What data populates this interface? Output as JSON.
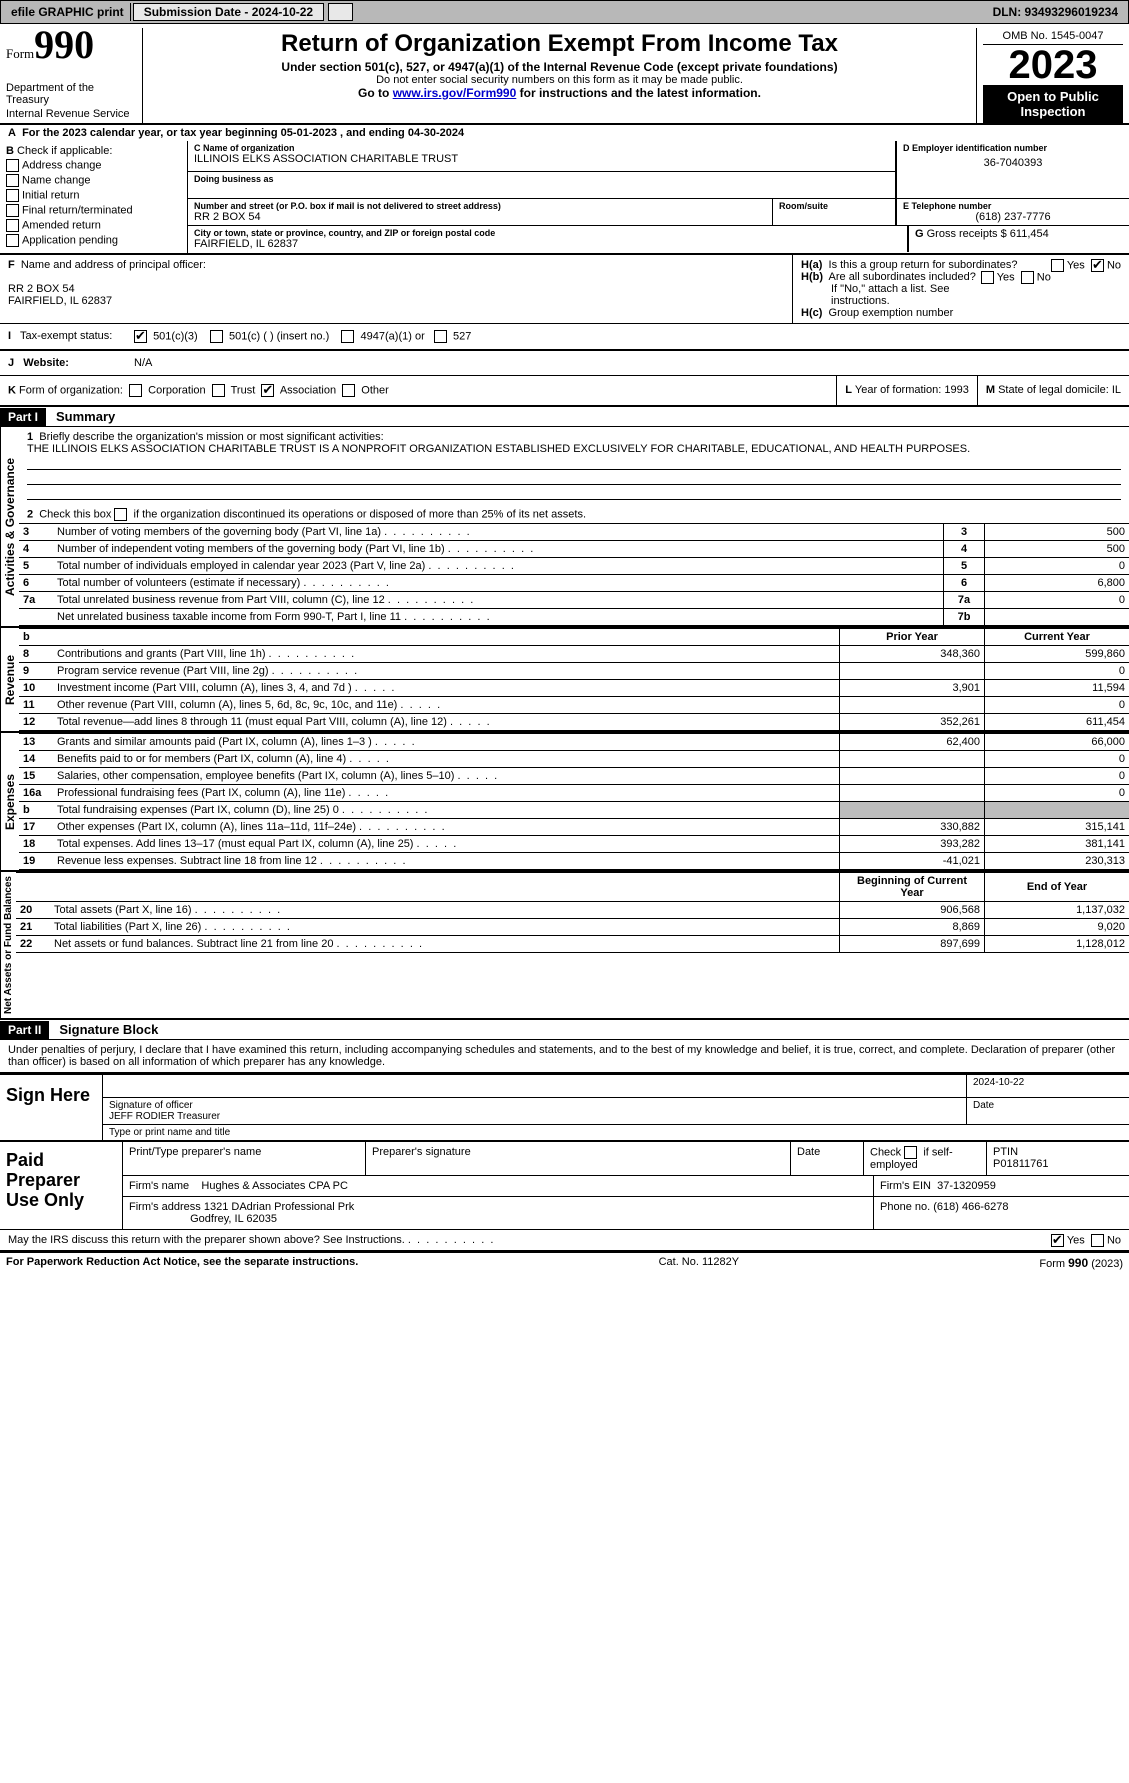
{
  "topbar": {
    "efile": "efile GRAPHIC print",
    "submission_label": "Submission Date - 2024-10-22",
    "dln_label": "DLN: 93493296019234"
  },
  "header": {
    "form_word": "Form",
    "form_number": "990",
    "dept": "Department of the Treasury",
    "irs": "Internal Revenue Service",
    "title": "Return of Organization Exempt From Income Tax",
    "subtitle": "Under section 501(c), 527, or 4947(a)(1) of the Internal Revenue Code (except private foundations)",
    "ssn_note": "Do not enter social security numbers on this form as it may be made public.",
    "goto_prefix": "Go to ",
    "goto_link": "www.irs.gov/Form990",
    "goto_suffix": " for instructions and the latest information.",
    "omb": "OMB No. 1545-0047",
    "year": "2023",
    "open": "Open to Public Inspection"
  },
  "A": {
    "text": "For the 2023 calendar year, or tax year beginning 05-01-2023   , and ending 04-30-2024"
  },
  "B": {
    "label": "Check if applicable:",
    "opts": {
      "address": "Address change",
      "name": "Name change",
      "initial": "Initial return",
      "final": "Final return/terminated",
      "amended": "Amended return",
      "pending": "Application pending"
    }
  },
  "C": {
    "name_label": "Name of organization",
    "name": "ILLINOIS ELKS ASSOCIATION CHARITABLE TRUST",
    "dba_label": "Doing business as",
    "street_label": "Number and street (or P.O. box if mail is not delivered to street address)",
    "room_label": "Room/suite",
    "street": "RR 2 BOX 54",
    "city_label": "City or town, state or province, country, and ZIP or foreign postal code",
    "city": "FAIRFIELD, IL  62837"
  },
  "D": {
    "label": "Employer identification number",
    "value": "36-7040393"
  },
  "E": {
    "label": "Telephone number",
    "value": "(618) 237-7776"
  },
  "G": {
    "label": "Gross receipts $",
    "value": "611,454"
  },
  "F": {
    "label": "Name and address of principal officer:",
    "line1": "RR 2 BOX 54",
    "line2": "FAIRFIELD, IL  62837"
  },
  "H": {
    "a_label": "Is this a group return for subordinates?",
    "b_label": "Are all subordinates included?",
    "b_note": "If \"No,\" attach a list. See instructions.",
    "c_label": "Group exemption number",
    "yes": "Yes",
    "no": "No",
    "a_answer": "No"
  },
  "I_J": {
    "I_label": "Tax-exempt status:",
    "c3": "501(c)(3)",
    "c": "501(c) (  ) (insert no.)",
    "a1": "4947(a)(1) or",
    "five27": "527",
    "J_label": "Website:",
    "J_value": "N/A"
  },
  "K": {
    "label": "Form of organization:",
    "corp": "Corporation",
    "trust": "Trust",
    "assoc": "Association",
    "other": "Other",
    "checked": "Association"
  },
  "L": {
    "label": "Year of formation:",
    "value": "1993"
  },
  "M": {
    "label": "State of legal domicile:",
    "value": "IL"
  },
  "part1": {
    "bar": "Part I",
    "title": "Summary",
    "q1_label": "Briefly describe the organization's mission or most significant activities:",
    "q1_text": "THE ILLINOIS ELKS ASSOCIATION CHARITABLE TRUST IS A NONPROFIT ORGANIZATION ESTABLISHED EXCLUSIVELY FOR CHARITABLE, EDUCATIONAL, AND HEALTH PURPOSES.",
    "q2": "Check this box          if the organization discontinued its operations or disposed of more than 25% of its net assets.",
    "lines_ag": [
      {
        "n": "3",
        "t": "Number of voting members of the governing body (Part VI, line 1a)",
        "box": "3",
        "v": "500"
      },
      {
        "n": "4",
        "t": "Number of independent voting members of the governing body (Part VI, line 1b)",
        "box": "4",
        "v": "500"
      },
      {
        "n": "5",
        "t": "Total number of individuals employed in calendar year 2023 (Part V, line 2a)",
        "box": "5",
        "v": "0"
      },
      {
        "n": "6",
        "t": "Total number of volunteers (estimate if necessary)",
        "box": "6",
        "v": "6,800"
      },
      {
        "n": "7a",
        "t": "Total unrelated business revenue from Part VIII, column (C), line 12",
        "box": "7a",
        "v": "0"
      },
      {
        "n": "",
        "t": "Net unrelated business taxable income from Form 990-T, Part I, line 11",
        "box": "7b",
        "v": ""
      }
    ],
    "head_prior": "Prior Year",
    "head_current": "Current Year",
    "revenue": [
      {
        "n": "8",
        "t": "Contributions and grants (Part VIII, line 1h)",
        "p": "348,360",
        "c": "599,860"
      },
      {
        "n": "9",
        "t": "Program service revenue (Part VIII, line 2g)",
        "p": "",
        "c": "0"
      },
      {
        "n": "10",
        "t": "Investment income (Part VIII, column (A), lines 3, 4, and 7d )",
        "p": "3,901",
        "c": "11,594"
      },
      {
        "n": "11",
        "t": "Other revenue (Part VIII, column (A), lines 5, 6d, 8c, 9c, 10c, and 11e)",
        "p": "",
        "c": "0"
      },
      {
        "n": "12",
        "t": "Total revenue—add lines 8 through 11 (must equal Part VIII, column (A), line 12)",
        "p": "352,261",
        "c": "611,454"
      }
    ],
    "expenses": [
      {
        "n": "13",
        "t": "Grants and similar amounts paid (Part IX, column (A), lines 1–3 )",
        "p": "62,400",
        "c": "66,000"
      },
      {
        "n": "14",
        "t": "Benefits paid to or for members (Part IX, column (A), line 4)",
        "p": "",
        "c": "0"
      },
      {
        "n": "15",
        "t": "Salaries, other compensation, employee benefits (Part IX, column (A), lines 5–10)",
        "p": "",
        "c": "0"
      },
      {
        "n": "16a",
        "t": "Professional fundraising fees (Part IX, column (A), line 11e)",
        "p": "",
        "c": "0"
      },
      {
        "n": "b",
        "t": "Total fundraising expenses (Part IX, column (D), line 25) 0",
        "p": "grey",
        "c": "grey"
      },
      {
        "n": "17",
        "t": "Other expenses (Part IX, column (A), lines 11a–11d, 11f–24e)",
        "p": "330,882",
        "c": "315,141"
      },
      {
        "n": "18",
        "t": "Total expenses. Add lines 13–17 (must equal Part IX, column (A), line 25)",
        "p": "393,282",
        "c": "381,141"
      },
      {
        "n": "19",
        "t": "Revenue less expenses. Subtract line 18 from line 12",
        "p": "-41,021",
        "c": "230,313"
      }
    ],
    "head_begin": "Beginning of Current Year",
    "head_end": "End of Year",
    "netassets": [
      {
        "n": "20",
        "t": "Total assets (Part X, line 16)",
        "p": "906,568",
        "c": "1,137,032"
      },
      {
        "n": "21",
        "t": "Total liabilities (Part X, line 26)",
        "p": "8,869",
        "c": "9,020"
      },
      {
        "n": "22",
        "t": "Net assets or fund balances. Subtract line 21 from line 20",
        "p": "897,699",
        "c": "1,128,012"
      }
    ],
    "side_ag": "Activities & Governance",
    "side_rev": "Revenue",
    "side_exp": "Expenses",
    "side_net": "Net Assets or Fund Balances"
  },
  "part2": {
    "bar": "Part II",
    "title": "Signature Block",
    "decl": "Under penalties of perjury, I declare that I have examined this return, including accompanying schedules and statements, and to the best of my knowledge and belief, it is true, correct, and complete. Declaration of preparer (other than officer) is based on all information of which preparer has any knowledge."
  },
  "sign": {
    "left": "Sign Here",
    "sig_label": "Signature of officer",
    "date_label": "Date",
    "date_value": "2024-10-22",
    "name_line": "JEFF RODIER  Treasurer",
    "name_label": "Type or print name and title"
  },
  "paid": {
    "left": "Paid Preparer Use Only",
    "c1": "Print/Type preparer's name",
    "c2": "Preparer's signature",
    "c3": "Date",
    "c4a": "Check",
    "c4b": "if self-employed",
    "c5l": "PTIN",
    "c5v": "P01811761",
    "firm_l": "Firm's name",
    "firm_v": "Hughes & Associates CPA PC",
    "ein_l": "Firm's EIN",
    "ein_v": "37-1320959",
    "addr_l": "Firm's address",
    "addr_v1": "1321 DAdrian Professional Prk",
    "addr_v2": "Godfrey, IL  62035",
    "phone_l": "Phone no.",
    "phone_v": "(618) 466-6278"
  },
  "discuss": {
    "text": "May the IRS discuss this return with the preparer shown above? See Instructions.",
    "yes": "Yes",
    "no": "No",
    "answer": "Yes"
  },
  "footer": {
    "left": "For Paperwork Reduction Act Notice, see the separate instructions.",
    "mid": "Cat. No. 11282Y",
    "right": "Form 990 (2023)"
  }
}
